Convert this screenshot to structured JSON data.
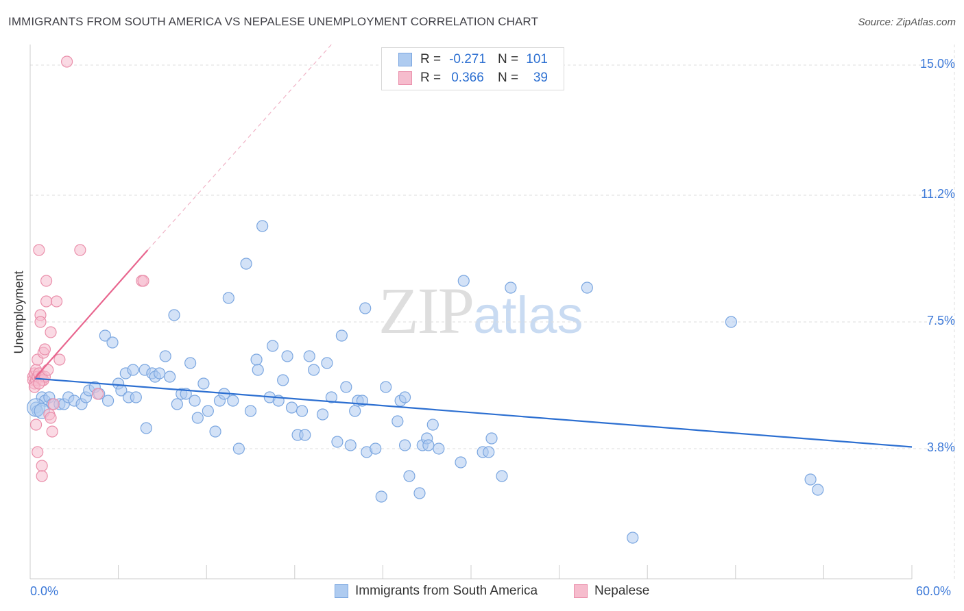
{
  "title": "IMMIGRANTS FROM SOUTH AMERICA VS NEPALESE UNEMPLOYMENT CORRELATION CHART",
  "source": "Source: ZipAtlas.com",
  "watermark": {
    "part1": "ZIP",
    "part2": "atlas"
  },
  "legend": {
    "series1": {
      "r_label": "R =",
      "r_value": "-0.271",
      "n_label": "N =",
      "n_value": "101"
    },
    "series2": {
      "r_label": "R =",
      "r_value": "0.366",
      "n_label": "N =",
      "n_value": "39"
    }
  },
  "colors": {
    "blue_fill": "#aecbf0",
    "blue_stroke": "#7aa6e0",
    "blue_line": "#2c6fd1",
    "pink_fill": "#f6bccd",
    "pink_stroke": "#ea8fab",
    "pink_line": "#e8658e",
    "grid": "#dddddd",
    "tick_label": "#3b78d8"
  },
  "chart_data": {
    "type": "scatter",
    "title": "IMMIGRANTS FROM SOUTH AMERICA VS NEPALESE UNEMPLOYMENT CORRELATION CHART",
    "xlabel": "",
    "ylabel": "Unemployment",
    "xlim": [
      0,
      60
    ],
    "ylim": [
      0,
      15.6
    ],
    "x_tick_labels": [
      "0.0%",
      "60.0%"
    ],
    "y_ticks": [
      3.8,
      7.5,
      11.2,
      15.0
    ],
    "y_tick_labels": [
      "3.8%",
      "7.5%",
      "11.2%",
      "15.0%"
    ],
    "series": [
      {
        "name": "Immigrants from South America",
        "r": -0.271,
        "n": 101,
        "trend": {
          "x": [
            0.3,
            60
          ],
          "y": [
            5.85,
            3.85
          ]
        },
        "points": [
          [
            0.4,
            5.0
          ],
          [
            0.5,
            4.9
          ],
          [
            0.8,
            5.3
          ],
          [
            1.0,
            5.2
          ],
          [
            1.3,
            5.3
          ],
          [
            1.5,
            5.1
          ],
          [
            2.0,
            5.1
          ],
          [
            2.3,
            5.1
          ],
          [
            2.6,
            5.3
          ],
          [
            3.0,
            5.2
          ],
          [
            3.5,
            5.1
          ],
          [
            3.8,
            5.3
          ],
          [
            4.0,
            5.5
          ],
          [
            4.4,
            5.6
          ],
          [
            4.7,
            5.4
          ],
          [
            5.1,
            7.1
          ],
          [
            5.3,
            5.2
          ],
          [
            5.6,
            6.9
          ],
          [
            6.0,
            5.7
          ],
          [
            6.2,
            5.5
          ],
          [
            6.5,
            6.0
          ],
          [
            6.7,
            5.3
          ],
          [
            7.0,
            6.1
          ],
          [
            7.2,
            5.3
          ],
          [
            7.8,
            6.1
          ],
          [
            7.9,
            4.4
          ],
          [
            8.3,
            6.0
          ],
          [
            8.5,
            5.9
          ],
          [
            8.8,
            6.0
          ],
          [
            9.2,
            6.5
          ],
          [
            9.5,
            5.9
          ],
          [
            9.8,
            7.7
          ],
          [
            10.0,
            5.1
          ],
          [
            10.3,
            5.4
          ],
          [
            10.6,
            5.4
          ],
          [
            10.9,
            6.3
          ],
          [
            11.2,
            5.2
          ],
          [
            11.4,
            4.7
          ],
          [
            11.8,
            5.7
          ],
          [
            12.1,
            4.9
          ],
          [
            12.6,
            4.3
          ],
          [
            12.9,
            5.2
          ],
          [
            13.2,
            5.4
          ],
          [
            13.5,
            8.2
          ],
          [
            13.8,
            5.2
          ],
          [
            14.2,
            3.8
          ],
          [
            14.7,
            9.2
          ],
          [
            15.0,
            4.9
          ],
          [
            15.4,
            6.4
          ],
          [
            15.5,
            6.1
          ],
          [
            15.8,
            10.3
          ],
          [
            16.3,
            5.3
          ],
          [
            16.9,
            5.2
          ],
          [
            16.5,
            6.8
          ],
          [
            17.2,
            5.8
          ],
          [
            17.5,
            6.5
          ],
          [
            17.8,
            5.0
          ],
          [
            18.2,
            4.2
          ],
          [
            18.5,
            4.9
          ],
          [
            18.7,
            4.2
          ],
          [
            19.0,
            6.5
          ],
          [
            19.3,
            6.1
          ],
          [
            19.9,
            4.8
          ],
          [
            20.2,
            6.3
          ],
          [
            20.5,
            5.3
          ],
          [
            20.9,
            4.0
          ],
          [
            21.2,
            7.1
          ],
          [
            21.5,
            5.6
          ],
          [
            21.8,
            3.9
          ],
          [
            22.1,
            4.9
          ],
          [
            22.3,
            5.2
          ],
          [
            22.6,
            5.2
          ],
          [
            22.8,
            7.9
          ],
          [
            22.9,
            3.7
          ],
          [
            23.5,
            3.8
          ],
          [
            23.9,
            2.4
          ],
          [
            24.2,
            5.6
          ],
          [
            25.0,
            4.6
          ],
          [
            25.2,
            5.2
          ],
          [
            25.5,
            5.3
          ],
          [
            25.5,
            3.9
          ],
          [
            25.8,
            3.0
          ],
          [
            26.5,
            2.5
          ],
          [
            26.7,
            3.9
          ],
          [
            27.0,
            4.1
          ],
          [
            27.1,
            3.9
          ],
          [
            27.4,
            4.5
          ],
          [
            27.8,
            3.8
          ],
          [
            29.3,
            3.4
          ],
          [
            29.5,
            8.7
          ],
          [
            30.8,
            3.7
          ],
          [
            31.2,
            3.7
          ],
          [
            31.4,
            4.1
          ],
          [
            32.1,
            3.0
          ],
          [
            32.7,
            8.5
          ],
          [
            37.9,
            8.5
          ],
          [
            41.0,
            1.2
          ],
          [
            47.7,
            7.5
          ],
          [
            53.1,
            2.9
          ],
          [
            53.6,
            2.6
          ]
        ]
      },
      {
        "name": "Nepalese",
        "r": 0.366,
        "n": 39,
        "trend": {
          "x": [
            0.3,
            8.0
          ],
          "y": [
            5.85,
            9.6
          ]
        },
        "trend_extension": {
          "x": [
            8.0,
            20.5
          ],
          "y": [
            9.6,
            15.6
          ]
        },
        "points": [
          [
            0.2,
            5.9
          ],
          [
            0.2,
            5.8
          ],
          [
            0.3,
            6.0
          ],
          [
            0.3,
            5.7
          ],
          [
            0.4,
            6.1
          ],
          [
            0.4,
            5.8
          ],
          [
            0.4,
            4.5
          ],
          [
            0.5,
            6.4
          ],
          [
            0.5,
            5.9
          ],
          [
            0.5,
            3.7
          ],
          [
            0.6,
            9.6
          ],
          [
            0.6,
            6.0
          ],
          [
            0.7,
            7.7
          ],
          [
            0.7,
            7.5
          ],
          [
            0.8,
            5.9
          ],
          [
            0.8,
            5.8
          ],
          [
            0.8,
            3.3
          ],
          [
            0.8,
            3.0
          ],
          [
            0.9,
            6.6
          ],
          [
            0.9,
            5.8
          ],
          [
            1.0,
            6.7
          ],
          [
            1.0,
            5.9
          ],
          [
            1.1,
            8.7
          ],
          [
            1.1,
            8.1
          ],
          [
            1.2,
            6.1
          ],
          [
            1.3,
            4.8
          ],
          [
            1.4,
            4.7
          ],
          [
            1.4,
            7.2
          ],
          [
            1.5,
            4.3
          ],
          [
            1.6,
            5.1
          ],
          [
            1.8,
            8.1
          ],
          [
            2.0,
            6.4
          ],
          [
            2.5,
            15.1
          ],
          [
            3.4,
            9.6
          ],
          [
            4.6,
            5.4
          ],
          [
            7.6,
            8.7
          ],
          [
            7.7,
            8.7
          ],
          [
            0.3,
            5.6
          ],
          [
            0.6,
            5.7
          ]
        ]
      }
    ]
  },
  "bottom_legend": {
    "series1": "Immigrants from South America",
    "series2": "Nepalese"
  }
}
